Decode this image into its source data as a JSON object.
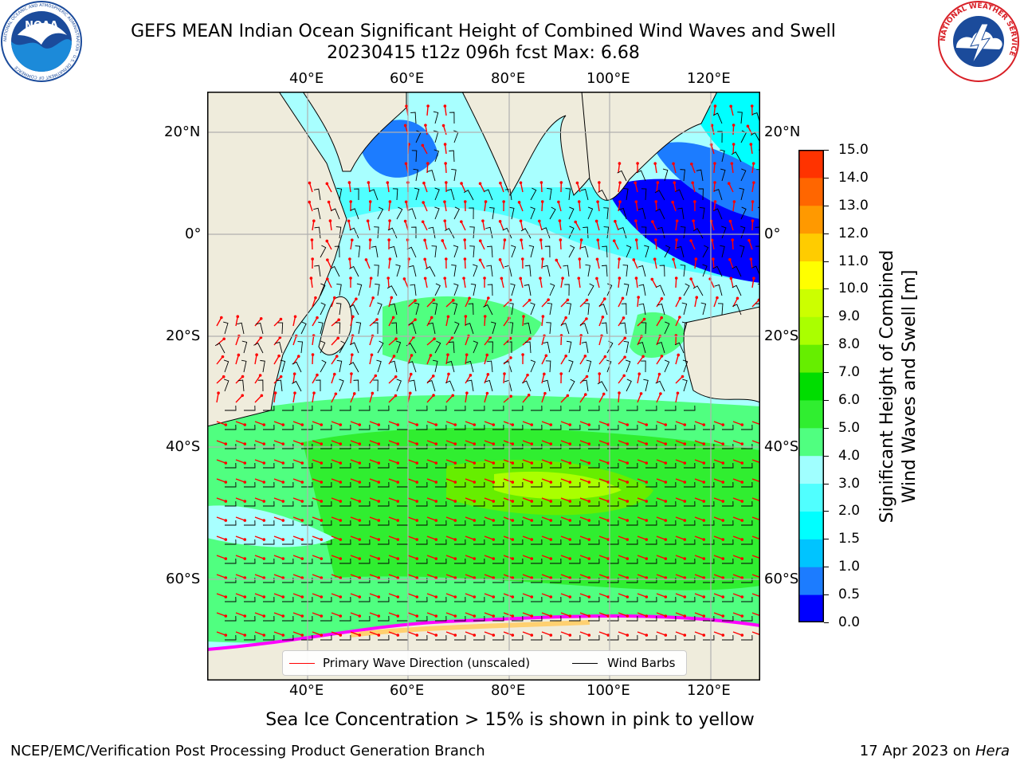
{
  "title": {
    "line1": "GEFS MEAN Indian Ocean Significant Height of Combined Wind Waves and Swell",
    "line2": "20230415 t12z 096h fcst   Max: 6.68"
  },
  "logos": {
    "left": {
      "name": "NOAA",
      "ring_text": "NATIONAL OCEANIC AND ATMOSPHERIC ADMINISTRATION · U.S. DEPARTMENT OF COMMERCE"
    },
    "right": {
      "ring_text": "NATIONAL WEATHER SERVICE"
    }
  },
  "map": {
    "lon_labels": [
      "40°E",
      "60°E",
      "80°E",
      "100°E",
      "120°E"
    ],
    "lat_labels": [
      "20°N",
      "0°",
      "20°S",
      "40°S",
      "60°S"
    ],
    "colors": {
      "land": "#efecdc",
      "coastline": "#000000",
      "grid": "#b0b0b0",
      "wave_arrow": "#ff0000",
      "wind_barb": "#000000",
      "sea_ice_low": "#ff00ff",
      "sea_ice_high": "#ffd070"
    },
    "max_wave_height_m": 6.68
  },
  "legend": {
    "wave_direction_label": "Primary Wave Direction (unscaled)",
    "wind_barbs_label": "Wind Barbs",
    "wave_direction_color": "#ff0000",
    "wind_barbs_color": "#000000"
  },
  "colorbar": {
    "label_line1": "Significant Height of Combined",
    "label_line2": "Wind Waves and Swell [m]",
    "ticks": [
      "0.0",
      "0.5",
      "1.0",
      "1.5",
      "2.0",
      "3.0",
      "4.0",
      "5.0",
      "6.0",
      "7.0",
      "8.0",
      "9.0",
      "10.0",
      "11.0",
      "12.0",
      "13.0",
      "14.0",
      "15.0"
    ],
    "colors": [
      "#0000ff",
      "#1c7cff",
      "#00c4ff",
      "#00ffff",
      "#50ffff",
      "#a0ffff",
      "#50ff80",
      "#30ee30",
      "#00dd00",
      "#66ee00",
      "#aaff00",
      "#ccff00",
      "#ffff00",
      "#ffcc00",
      "#ff9900",
      "#ff6600",
      "#ff3300",
      "#ff0000"
    ]
  },
  "ice_caption": "Sea Ice Concentration > 15% is shown in pink to yellow",
  "footer": {
    "left": "NCEP/EMC/Verification Post Processing Product Generation Branch",
    "right_prefix": "17 Apr 2023 on ",
    "right_host": "Hera"
  }
}
